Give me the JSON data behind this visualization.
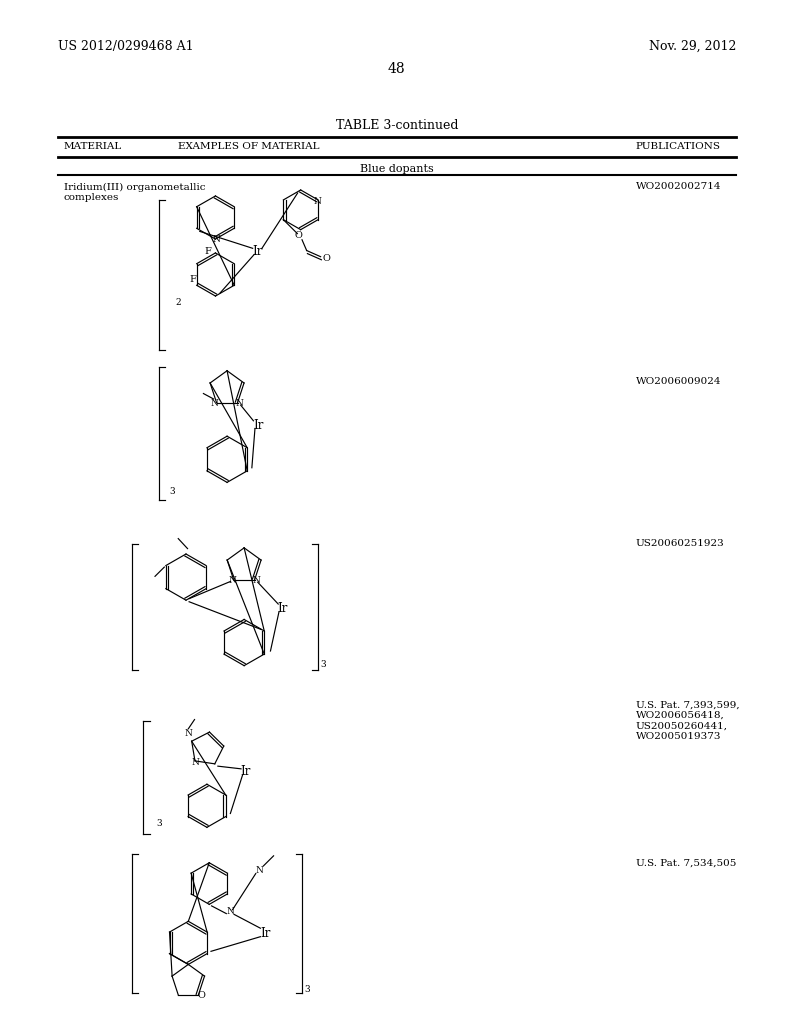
{
  "page_number": "48",
  "patent_number": "US 2012/0299468 A1",
  "date": "Nov. 29, 2012",
  "table_title": "TABLE 3-continued",
  "col1_header": "MATERIAL",
  "col2_header": "EXAMPLES OF MATERIAL",
  "col3_header": "PUBLICATIONS",
  "section_label": "Blue dopants",
  "material_label_line1": "Iridium(III) organometallic",
  "material_label_line2": "complexes",
  "publications": [
    "WO2002002714",
    "WO2006009024",
    "US20060251923",
    "U.S. Pat. 7,393,599,\nWO2006056418,\nUS20050260441,\nWO2005019373",
    "U.S. Pat. 7,534,505"
  ],
  "bg_color": "#ffffff",
  "text_color": "#000000",
  "line_color": "#000000",
  "font_size_header": 7.5,
  "font_size_body": 7.5,
  "font_size_page": 10,
  "font_size_table_title": 9,
  "fig_width": 10.24,
  "fig_height": 13.2
}
